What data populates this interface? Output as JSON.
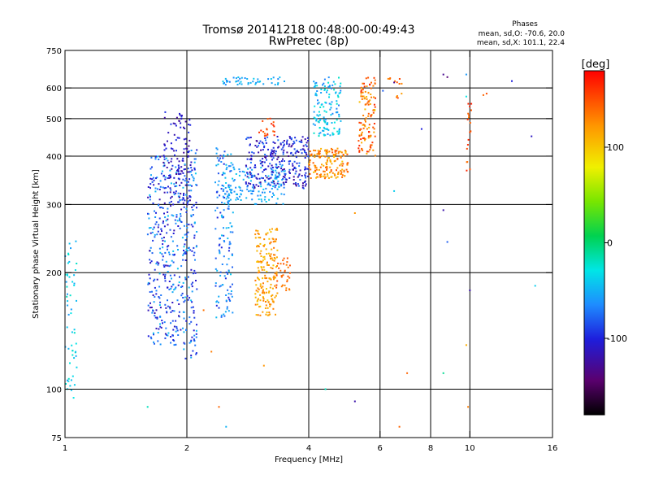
{
  "chart_data": {
    "type": "scatter",
    "title": "Tromsø 20141218 00:48:00-00:49:43",
    "subtitle": "RwPretec (8p)",
    "xlabel": "Frequency [MHz]",
    "ylabel": "Stationary phase Virtual Height [km]",
    "x_scale": "log",
    "y_scale": "log",
    "xlim": [
      1,
      16
    ],
    "ylim": [
      75,
      750
    ],
    "x_ticks": [
      1,
      2,
      4,
      6,
      8,
      10,
      16
    ],
    "y_ticks": [
      75,
      100,
      200,
      300,
      400,
      500,
      600,
      750
    ],
    "x_grid_lines": [
      2,
      4,
      6,
      8,
      10
    ],
    "y_grid_lines": [
      100,
      200,
      300,
      400,
      500,
      600
    ],
    "grid": true,
    "colorbar": {
      "label": "[deg]",
      "range": [
        -180,
        180
      ],
      "ticks": [
        100,
        0,
        -100
      ]
    },
    "phase_stats": {
      "heading": "Phases",
      "line1": "mean, sd,O: -70.6, 20.0",
      "line2": "mean, sd,X: 101.1, 22.4"
    },
    "clusters": [
      {
        "f": [
          1.0,
          1.07
        ],
        "h": [
          98,
          250
        ],
        "c": [
          -60,
          -20
        ],
        "n": 55
      },
      {
        "f": [
          1.6,
          1.95
        ],
        "h": [
          130,
          400
        ],
        "c": [
          -120,
          -40
        ],
        "n": 320
      },
      {
        "f": [
          1.75,
          2.05
        ],
        "h": [
          300,
          520
        ],
        "c": [
          -130,
          -90
        ],
        "n": 110
      },
      {
        "f": [
          1.95,
          2.12
        ],
        "h": [
          120,
          420
        ],
        "c": [
          -110,
          -40
        ],
        "n": 160
      },
      {
        "f": [
          2.35,
          2.6
        ],
        "h": [
          150,
          420
        ],
        "c": [
          -100,
          -40
        ],
        "n": 150
      },
      {
        "f": [
          2.45,
          3.5
        ],
        "h": [
          300,
          380
        ],
        "c": [
          -70,
          -40
        ],
        "n": 140
      },
      {
        "f": [
          2.8,
          4.0
        ],
        "h": [
          330,
          450
        ],
        "c": [
          -130,
          -70
        ],
        "n": 280
      },
      {
        "f": [
          2.95,
          3.35
        ],
        "h": [
          155,
          260
        ],
        "c": [
          95,
          135
        ],
        "n": 180
      },
      {
        "f": [
          3.3,
          3.6
        ],
        "h": [
          180,
          220
        ],
        "c": [
          120,
          150
        ],
        "n": 35
      },
      {
        "f": [
          4.0,
          5.0
        ],
        "h": [
          350,
          420
        ],
        "c": [
          100,
          150
        ],
        "n": 160
      },
      {
        "f": [
          4.1,
          4.8
        ],
        "h": [
          450,
          640
        ],
        "c": [
          -70,
          -20
        ],
        "n": 130
      },
      {
        "f": [
          5.3,
          5.85
        ],
        "h": [
          400,
          640
        ],
        "c": [
          100,
          170
        ],
        "n": 120
      },
      {
        "f": [
          2.45,
          3.5
        ],
        "h": [
          610,
          640
        ],
        "c": [
          -70,
          -40
        ],
        "n": 45
      },
      {
        "f": [
          3.0,
          3.3
        ],
        "h": [
          450,
          500
        ],
        "c": [
          140,
          165
        ],
        "n": 20
      },
      {
        "f": [
          6.2,
          6.9
        ],
        "h": [
          560,
          640
        ],
        "c": [
          110,
          160
        ],
        "n": 12
      },
      {
        "f": [
          9.8,
          10.1
        ],
        "h": [
          350,
          550
        ],
        "c": [
          130,
          170
        ],
        "n": 18
      }
    ],
    "scattered_points": [
      [
        1.03,
        102,
        -40
      ],
      [
        1.05,
        95,
        -30
      ],
      [
        1.6,
        90,
        -20
      ],
      [
        2.5,
        80,
        -50
      ],
      [
        5.2,
        93,
        -120
      ],
      [
        5.2,
        285,
        120
      ],
      [
        6.7,
        80,
        140
      ],
      [
        7.0,
        110,
        140
      ],
      [
        8.6,
        110,
        -10
      ],
      [
        8.6,
        290,
        -120
      ],
      [
        8.8,
        240,
        -80
      ],
      [
        9.9,
        90,
        130
      ],
      [
        10.0,
        180,
        -120
      ],
      [
        11.0,
        580,
        150
      ],
      [
        12.7,
        625,
        -100
      ],
      [
        14.5,
        185,
        -40
      ],
      [
        14.2,
        450,
        -110
      ],
      [
        8.6,
        650,
        -130
      ],
      [
        9.8,
        650,
        -60
      ],
      [
        6.5,
        620,
        -130
      ],
      [
        7.6,
        470,
        -100
      ],
      [
        8.8,
        640,
        -140
      ],
      [
        9.8,
        570,
        -30
      ],
      [
        10.8,
        575,
        140
      ],
      [
        2.3,
        125,
        130
      ],
      [
        2.2,
        160,
        135
      ],
      [
        2.4,
        90,
        140
      ],
      [
        3.1,
        115,
        120
      ],
      [
        4.4,
        100,
        -20
      ],
      [
        6.5,
        325,
        -40
      ],
      [
        6.1,
        590,
        -80
      ],
      [
        9.8,
        130,
        110
      ]
    ]
  }
}
